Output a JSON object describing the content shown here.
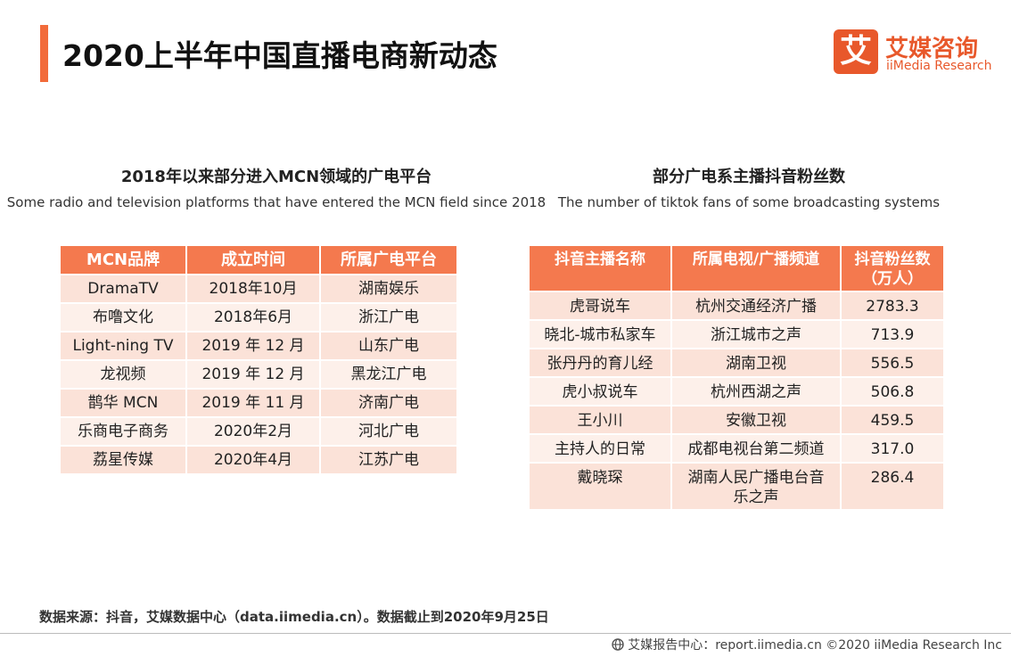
{
  "header": {
    "title": "2020上半年中国直播电商新动态",
    "logo_cn": "艾媒咨询",
    "logo_en": "iiMedia Research",
    "logo_mark": "艾"
  },
  "left_table": {
    "title": "2018年以来部分进入MCN领域的广电平台",
    "subtitle": "Some radio and television platforms that have entered the MCN field since 2018",
    "columns": [
      "MCN品牌",
      "成立时间",
      "所属广电平台"
    ],
    "rows": [
      [
        "DramaTV",
        "2018年10月",
        "湖南娱乐"
      ],
      [
        "布噜文化",
        "2018年6月",
        "浙江广电"
      ],
      [
        "Light-ning TV",
        "2019 年 12 月",
        "山东广电"
      ],
      [
        "龙视频",
        "2019 年 12 月",
        "黑龙江广电"
      ],
      [
        "鹊华 MCN",
        "2019 年 11 月",
        "济南广电"
      ],
      [
        "乐商电子商务",
        "2020年2月",
        "河北广电"
      ],
      [
        "荔星传媒",
        "2020年4月",
        "江苏广电"
      ]
    ]
  },
  "right_table": {
    "title": "部分广电系主播抖音粉丝数",
    "subtitle": "The number of tiktok fans of some broadcasting systems",
    "columns": [
      "抖音主播名称",
      "所属电视/广播频道",
      "抖音粉丝数（万人）"
    ],
    "rows": [
      [
        "虎哥说车",
        "杭州交通经济广播",
        "2783.3"
      ],
      [
        "晓北-城市私家车",
        "浙江城市之声",
        "713.9"
      ],
      [
        "张丹丹的育儿经",
        "湖南卫视",
        "556.5"
      ],
      [
        "虎小叔说车",
        "杭州西湖之声",
        "506.8"
      ],
      [
        "王小川",
        "安徽卫视",
        "459.5"
      ],
      [
        "主持人的日常",
        "成都电视台第二频道",
        "317.0"
      ],
      [
        "戴晓琛",
        "湖南人民广播电台音乐之声",
        "286.4"
      ]
    ]
  },
  "footer": {
    "source": "数据来源：抖音，艾媒数据中心（data.iimedia.cn）。数据截止到2020年9月25日",
    "credit": "艾媒报告中心：report.iimedia.cn  ©2020  iiMedia Research  Inc"
  }
}
